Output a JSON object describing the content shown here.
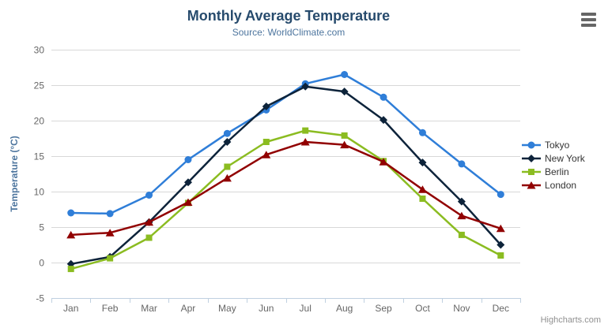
{
  "chart": {
    "title": "Monthly Average Temperature",
    "subtitle": "Source: WorldClimate.com",
    "credits": "Highcharts.com"
  },
  "chart_data": {
    "type": "line",
    "title": "Monthly Average Temperature",
    "subtitle": "Source: WorldClimate.com",
    "categories": [
      "Jan",
      "Feb",
      "Mar",
      "Apr",
      "May",
      "Jun",
      "Jul",
      "Aug",
      "Sep",
      "Oct",
      "Nov",
      "Dec"
    ],
    "series": [
      {
        "name": "Tokyo",
        "color": "#2f7ed8",
        "marker": "circle",
        "values": [
          7.0,
          6.9,
          9.5,
          14.5,
          18.2,
          21.5,
          25.2,
          26.5,
          23.3,
          18.3,
          13.9,
          9.6
        ]
      },
      {
        "name": "New York",
        "color": "#0d233a",
        "marker": "diamond",
        "values": [
          -0.2,
          0.8,
          5.7,
          11.3,
          17.0,
          22.0,
          24.8,
          24.1,
          20.1,
          14.1,
          8.6,
          2.5
        ]
      },
      {
        "name": "Berlin",
        "color": "#8bbc21",
        "marker": "square",
        "values": [
          -0.9,
          0.6,
          3.5,
          8.4,
          13.5,
          17.0,
          18.6,
          17.9,
          14.3,
          9.0,
          3.9,
          1.0
        ]
      },
      {
        "name": "London",
        "color": "#910000",
        "marker": "triangle",
        "values": [
          3.9,
          4.2,
          5.7,
          8.5,
          11.9,
          15.2,
          17.0,
          16.6,
          14.2,
          10.3,
          6.6,
          4.8
        ]
      }
    ],
    "xlabel": "",
    "ylabel": "Temperature (°C)",
    "ylim": [
      -5,
      30
    ],
    "yticks": [
      30,
      25,
      20,
      15,
      10,
      5,
      0,
      -5
    ],
    "grid": true,
    "legend_position": "right"
  },
  "colors": {
    "title": "#274b6d",
    "subtitle": "#4d759e",
    "axis_label": "#666666",
    "axis_title": "#4d759e",
    "axis_line": "#c0d0e0",
    "gridline": "#d8d8d8",
    "legend_text": "#333333",
    "credits": "#909090",
    "background": "#ffffff"
  }
}
